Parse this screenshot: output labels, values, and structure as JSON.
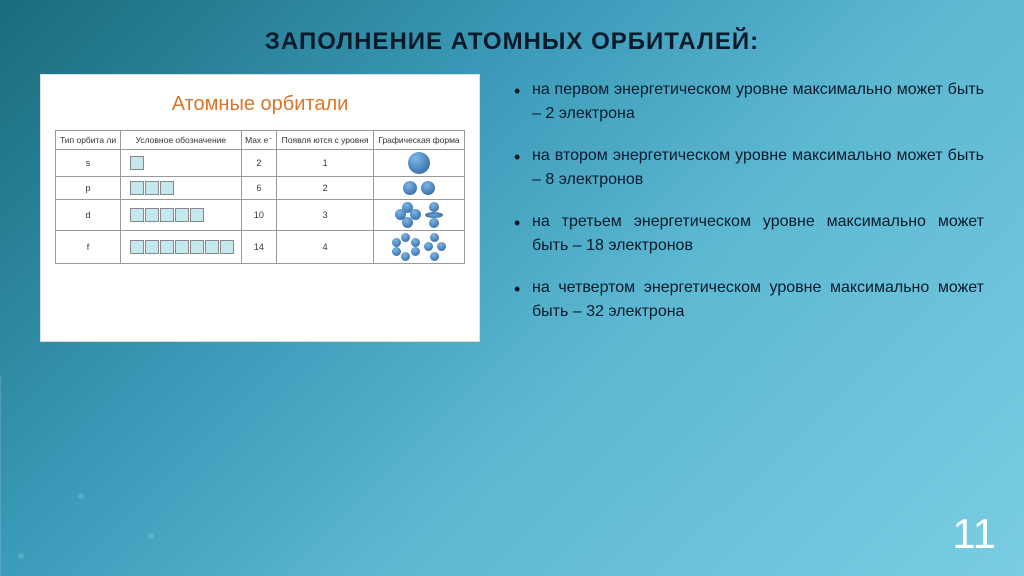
{
  "title": "ЗАПОЛНЕНИЕ АТОМНЫХ ОРБИТАЛЕЙ:",
  "panel_title": "Атомные орбитали",
  "headers": [
    "Тип орбита ли",
    "Условное обозначение",
    "Max e⁻",
    "Появля ются с уровня",
    "Графическая форма"
  ],
  "rows": [
    {
      "type": "s",
      "boxes": 1,
      "max": "2",
      "level": "1",
      "shape": "s"
    },
    {
      "type": "p",
      "boxes": 3,
      "max": "6",
      "level": "2",
      "shape": "p"
    },
    {
      "type": "d",
      "boxes": 5,
      "max": "10",
      "level": "3",
      "shape": "d"
    },
    {
      "type": "f",
      "boxes": 7,
      "max": "14",
      "level": "4",
      "shape": "f"
    }
  ],
  "bullets": [
    "на первом энергетическом уровне максимально может быть – 2 электрона",
    "на втором энергетическом уровне максимально может быть – 8 электронов",
    "на третьем энергетическом уровне максимально может быть – 18 электронов",
    "на четвертом энергетическом уровне максимально может быть – 32 электрона"
  ],
  "page": "11",
  "colors": {
    "accent": "#d97528",
    "box": "#c5e8ef",
    "orbital": "#2a5a9a"
  }
}
